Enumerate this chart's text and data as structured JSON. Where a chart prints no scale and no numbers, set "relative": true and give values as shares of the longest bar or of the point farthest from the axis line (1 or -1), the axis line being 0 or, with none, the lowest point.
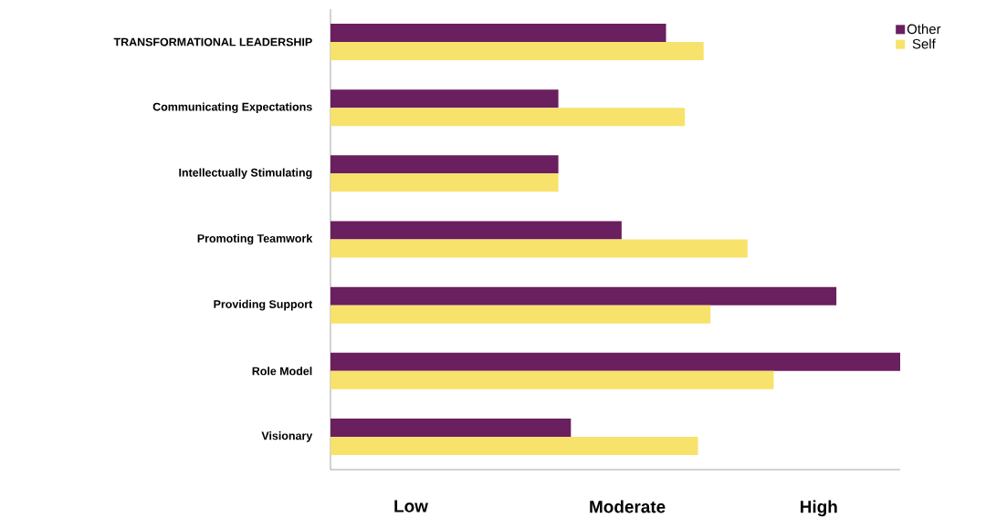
{
  "chart_data": {
    "type": "bar",
    "orientation": "horizontal",
    "relative": true,
    "categories": [
      "TRANSFORMATIONAL LEADERSHIP",
      "Communicating  Expectations",
      "Intellectually Stimulating",
      "Promoting Teamwork",
      "Providing Support",
      "Role Model",
      "Visionary"
    ],
    "series": [
      {
        "name": "Other",
        "color": "#6a1f5e",
        "values": [
          0.589,
          0.4,
          0.4,
          0.511,
          0.888,
          1,
          0.422
        ]
      },
      {
        "name": "Self",
        "color": "#f7e26b",
        "values": [
          0.655,
          0.622,
          0.4,
          0.732,
          0.667,
          0.778,
          0.645
        ]
      }
    ],
    "annotations": [
      "Low",
      "Moderate",
      "High"
    ],
    "legend": "top right",
    "grid": false
  }
}
